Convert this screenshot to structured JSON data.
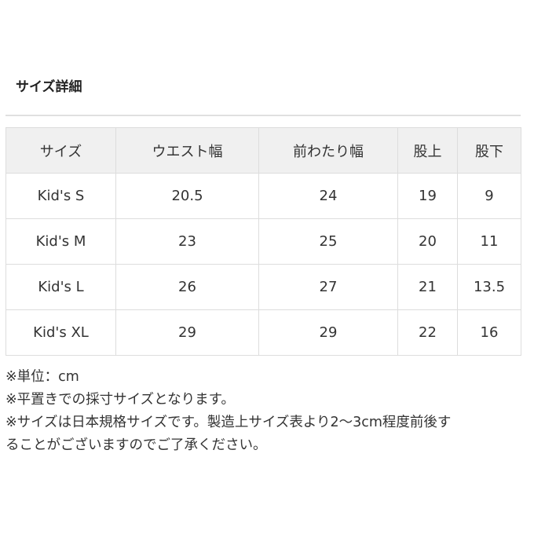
{
  "title": "サイズ詳細",
  "table": {
    "headers": [
      "サイズ",
      "ウエスト幅",
      "前わたり幅",
      "股上",
      "股下"
    ],
    "rows": [
      [
        "Kid's S",
        "20.5",
        "24",
        "19",
        "9"
      ],
      [
        "Kid's M",
        "23",
        "25",
        "20",
        "11"
      ],
      [
        "Kid's L",
        "26",
        "27",
        "21",
        "13.5"
      ],
      [
        "Kid's XL",
        "29",
        "29",
        "22",
        "16"
      ]
    ]
  },
  "notes": [
    "※単位：cm",
    "※平置きでの採寸サイズとなります。",
    "※サイズは日本規格サイズです。製造上サイズ表より2～3cm程度前後す",
    "ることがございますのでご了承ください。"
  ]
}
